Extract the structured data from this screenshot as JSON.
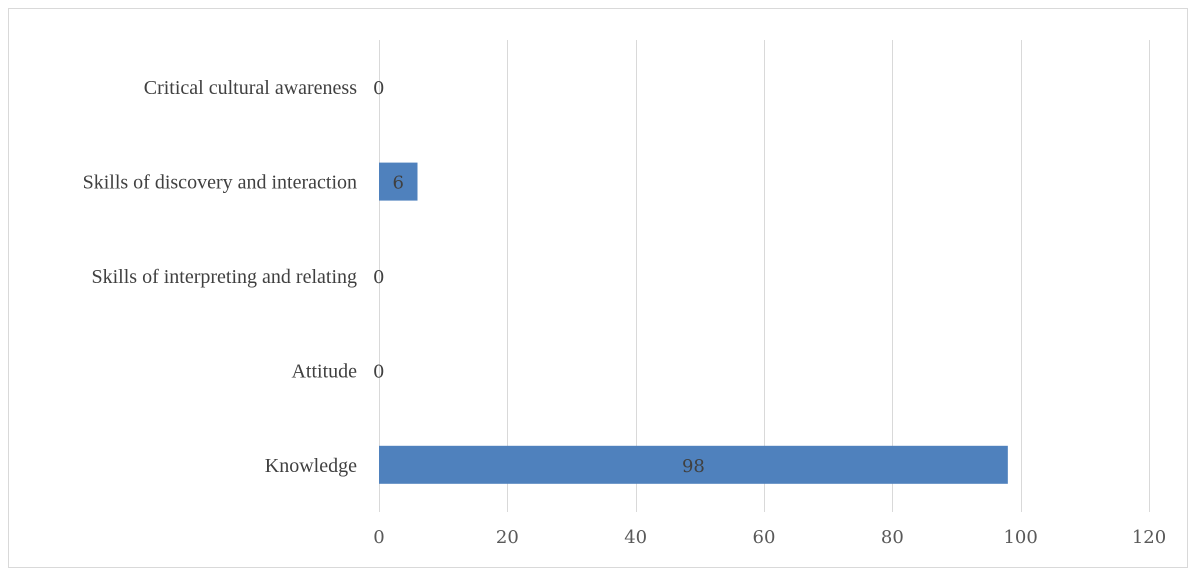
{
  "chart_data": {
    "type": "bar",
    "orientation": "horizontal",
    "title": "",
    "xlabel": "",
    "ylabel": "",
    "categories": [
      "Critical cultural awareness",
      "Skills of discovery and interaction",
      "Skills of interpreting and relating",
      "Attitude",
      "Knowledge"
    ],
    "values": [
      0,
      6,
      0,
      0,
      98
    ],
    "xlim": [
      0,
      120
    ],
    "xticks": [
      0,
      20,
      40,
      60,
      80,
      100,
      120
    ],
    "grid": "vertical",
    "legend": "none",
    "data_labels": true,
    "colors": {
      "bar": "#4f81bd",
      "grid": "#d9d9d9",
      "border": "#d9d9d9",
      "category_text": "#404040",
      "tick_text": "#595959"
    }
  }
}
